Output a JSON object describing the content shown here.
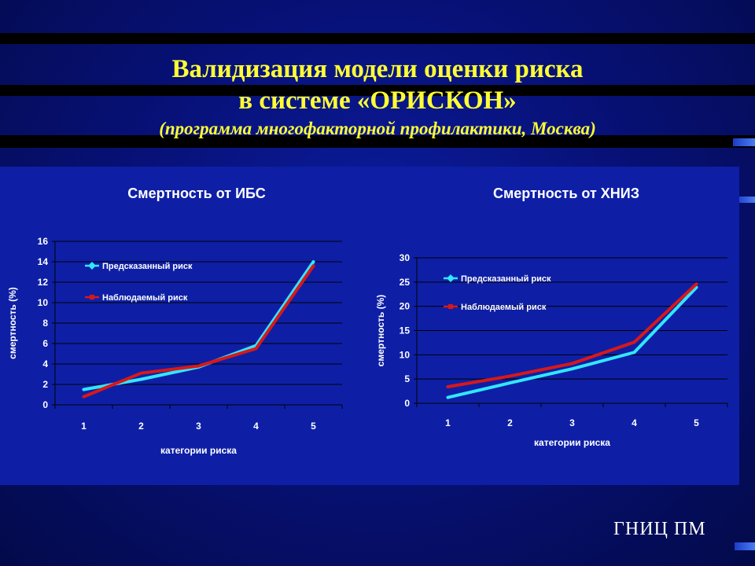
{
  "slide": {
    "title_line1": "Валидизация модели оценки риска",
    "title_line2": "в системе «ОРИСКОН»",
    "subtitle": "(программа многофакторной профилактики, Москва)",
    "logo": "ГНИЦ ПМ"
  },
  "colors": {
    "predicted": "#33e6ff",
    "observed": "#d81818",
    "panel": "#0e1fa6",
    "title": "#ffff33"
  },
  "chart_data": [
    {
      "type": "line",
      "title": "Смертность от ИБС",
      "xlabel": "категории риска",
      "ylabel": "смертность (%)",
      "categories": [
        "1",
        "2",
        "3",
        "4",
        "5"
      ],
      "ylim": [
        0,
        16
      ],
      "yticks": [
        "0",
        "2",
        "4",
        "6",
        "8",
        "10",
        "12",
        "14",
        "16"
      ],
      "grid": true,
      "legend_position": "top-left",
      "series": [
        {
          "name": "Предсказанный риск",
          "values": [
            1.5,
            2.5,
            3.7,
            5.8,
            14.0
          ]
        },
        {
          "name": "Наблюдаемый риск",
          "values": [
            0.8,
            3.1,
            3.8,
            5.5,
            13.6
          ]
        }
      ]
    },
    {
      "type": "line",
      "title": "Смертность от ХНИЗ",
      "xlabel": "категории риска",
      "ylabel": "смертность (%)",
      "categories": [
        "1",
        "2",
        "3",
        "4",
        "5"
      ],
      "ylim": [
        0,
        30
      ],
      "yticks": [
        "0",
        "5",
        "10",
        "15",
        "20",
        "25",
        "30"
      ],
      "grid": true,
      "legend_position": "top-left",
      "series": [
        {
          "name": "Предсказанный риск",
          "values": [
            1.2,
            4.2,
            7.1,
            10.5,
            23.9
          ]
        },
        {
          "name": "Наблюдаемый риск",
          "values": [
            3.4,
            5.6,
            8.2,
            12.6,
            24.6
          ]
        }
      ]
    }
  ]
}
